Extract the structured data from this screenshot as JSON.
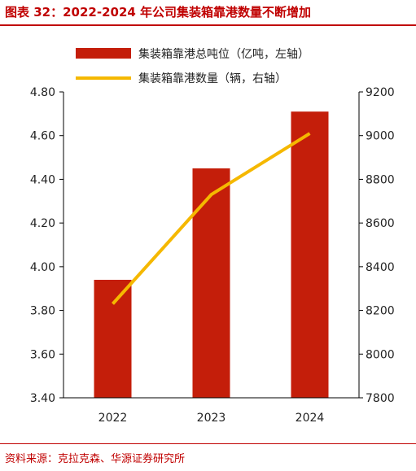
{
  "title": "图表 32：2022-2024 年公司集装箱靠港数量不断增加",
  "source": "资料来源：克拉克森、华源证券研究所",
  "colors": {
    "bar": "#c41e0a",
    "line": "#f5b800",
    "accent": "#c00000"
  },
  "chart_data": {
    "type": "bar",
    "categories": [
      "2022",
      "2023",
      "2024"
    ],
    "series": [
      {
        "name": "集装箱靠港总吨位（亿吨，左轴）",
        "type": "bar",
        "axis": "left",
        "values": [
          3.94,
          4.45,
          4.71
        ]
      },
      {
        "name": "集装箱靠港数量（辆，右轴）",
        "type": "line",
        "axis": "right",
        "values": [
          8230,
          8730,
          9010
        ]
      }
    ],
    "y_left": {
      "lim": [
        3.4,
        4.8
      ],
      "ticks": [
        "3.40",
        "3.60",
        "3.80",
        "4.00",
        "4.20",
        "4.40",
        "4.60",
        "4.80"
      ]
    },
    "y_right": {
      "lim": [
        7800,
        9200
      ],
      "ticks": [
        "7800",
        "8000",
        "8200",
        "8400",
        "8600",
        "8800",
        "9000",
        "9200"
      ]
    },
    "legend": "top",
    "grid": false
  }
}
